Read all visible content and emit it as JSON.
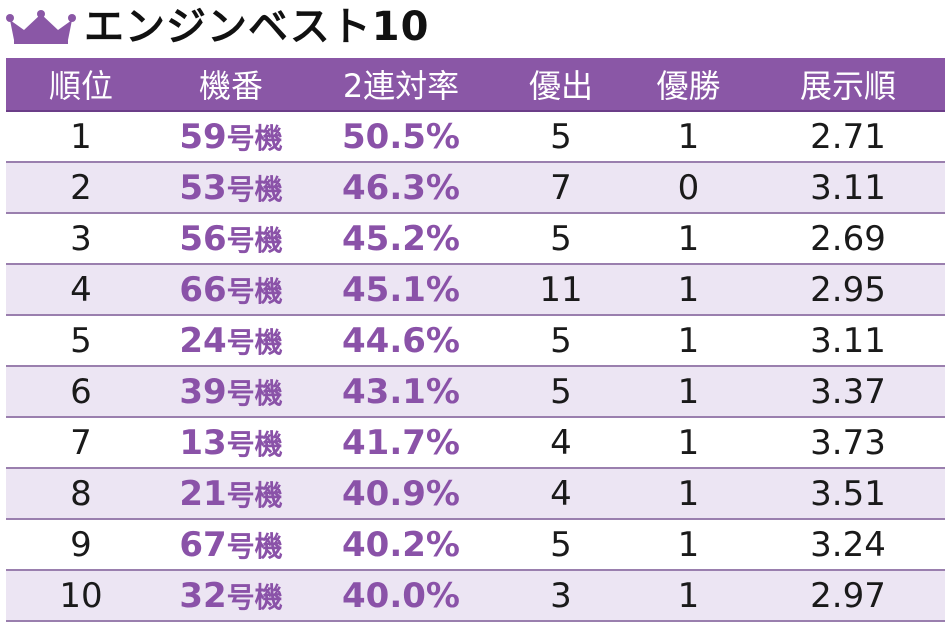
{
  "title": "エンジンベスト10",
  "colors": {
    "accent": "#8a57a6",
    "row_alt": "#ece5f3",
    "highlight_text": "#8a52a8"
  },
  "icon": "crown-icon",
  "table": {
    "headers": [
      "順位",
      "機番",
      "2連対率",
      "優出",
      "優勝",
      "展示順"
    ],
    "machine_suffix": "号機",
    "rows": [
      {
        "rank": "1",
        "machine": "59",
        "rate": "50.5%",
        "yushutsu": "5",
        "yusho": "1",
        "tenji": "2.71"
      },
      {
        "rank": "2",
        "machine": "53",
        "rate": "46.3%",
        "yushutsu": "7",
        "yusho": "0",
        "tenji": "3.11"
      },
      {
        "rank": "3",
        "machine": "56",
        "rate": "45.2%",
        "yushutsu": "5",
        "yusho": "1",
        "tenji": "2.69"
      },
      {
        "rank": "4",
        "machine": "66",
        "rate": "45.1%",
        "yushutsu": "11",
        "yusho": "1",
        "tenji": "2.95"
      },
      {
        "rank": "5",
        "machine": "24",
        "rate": "44.6%",
        "yushutsu": "5",
        "yusho": "1",
        "tenji": "3.11"
      },
      {
        "rank": "6",
        "machine": "39",
        "rate": "43.1%",
        "yushutsu": "5",
        "yusho": "1",
        "tenji": "3.37"
      },
      {
        "rank": "7",
        "machine": "13",
        "rate": "41.7%",
        "yushutsu": "4",
        "yusho": "1",
        "tenji": "3.73"
      },
      {
        "rank": "8",
        "machine": "21",
        "rate": "40.9%",
        "yushutsu": "4",
        "yusho": "1",
        "tenji": "3.51"
      },
      {
        "rank": "9",
        "machine": "67",
        "rate": "40.2%",
        "yushutsu": "5",
        "yusho": "1",
        "tenji": "3.24"
      },
      {
        "rank": "10",
        "machine": "32",
        "rate": "40.0%",
        "yushutsu": "3",
        "yusho": "1",
        "tenji": "2.97"
      }
    ]
  }
}
